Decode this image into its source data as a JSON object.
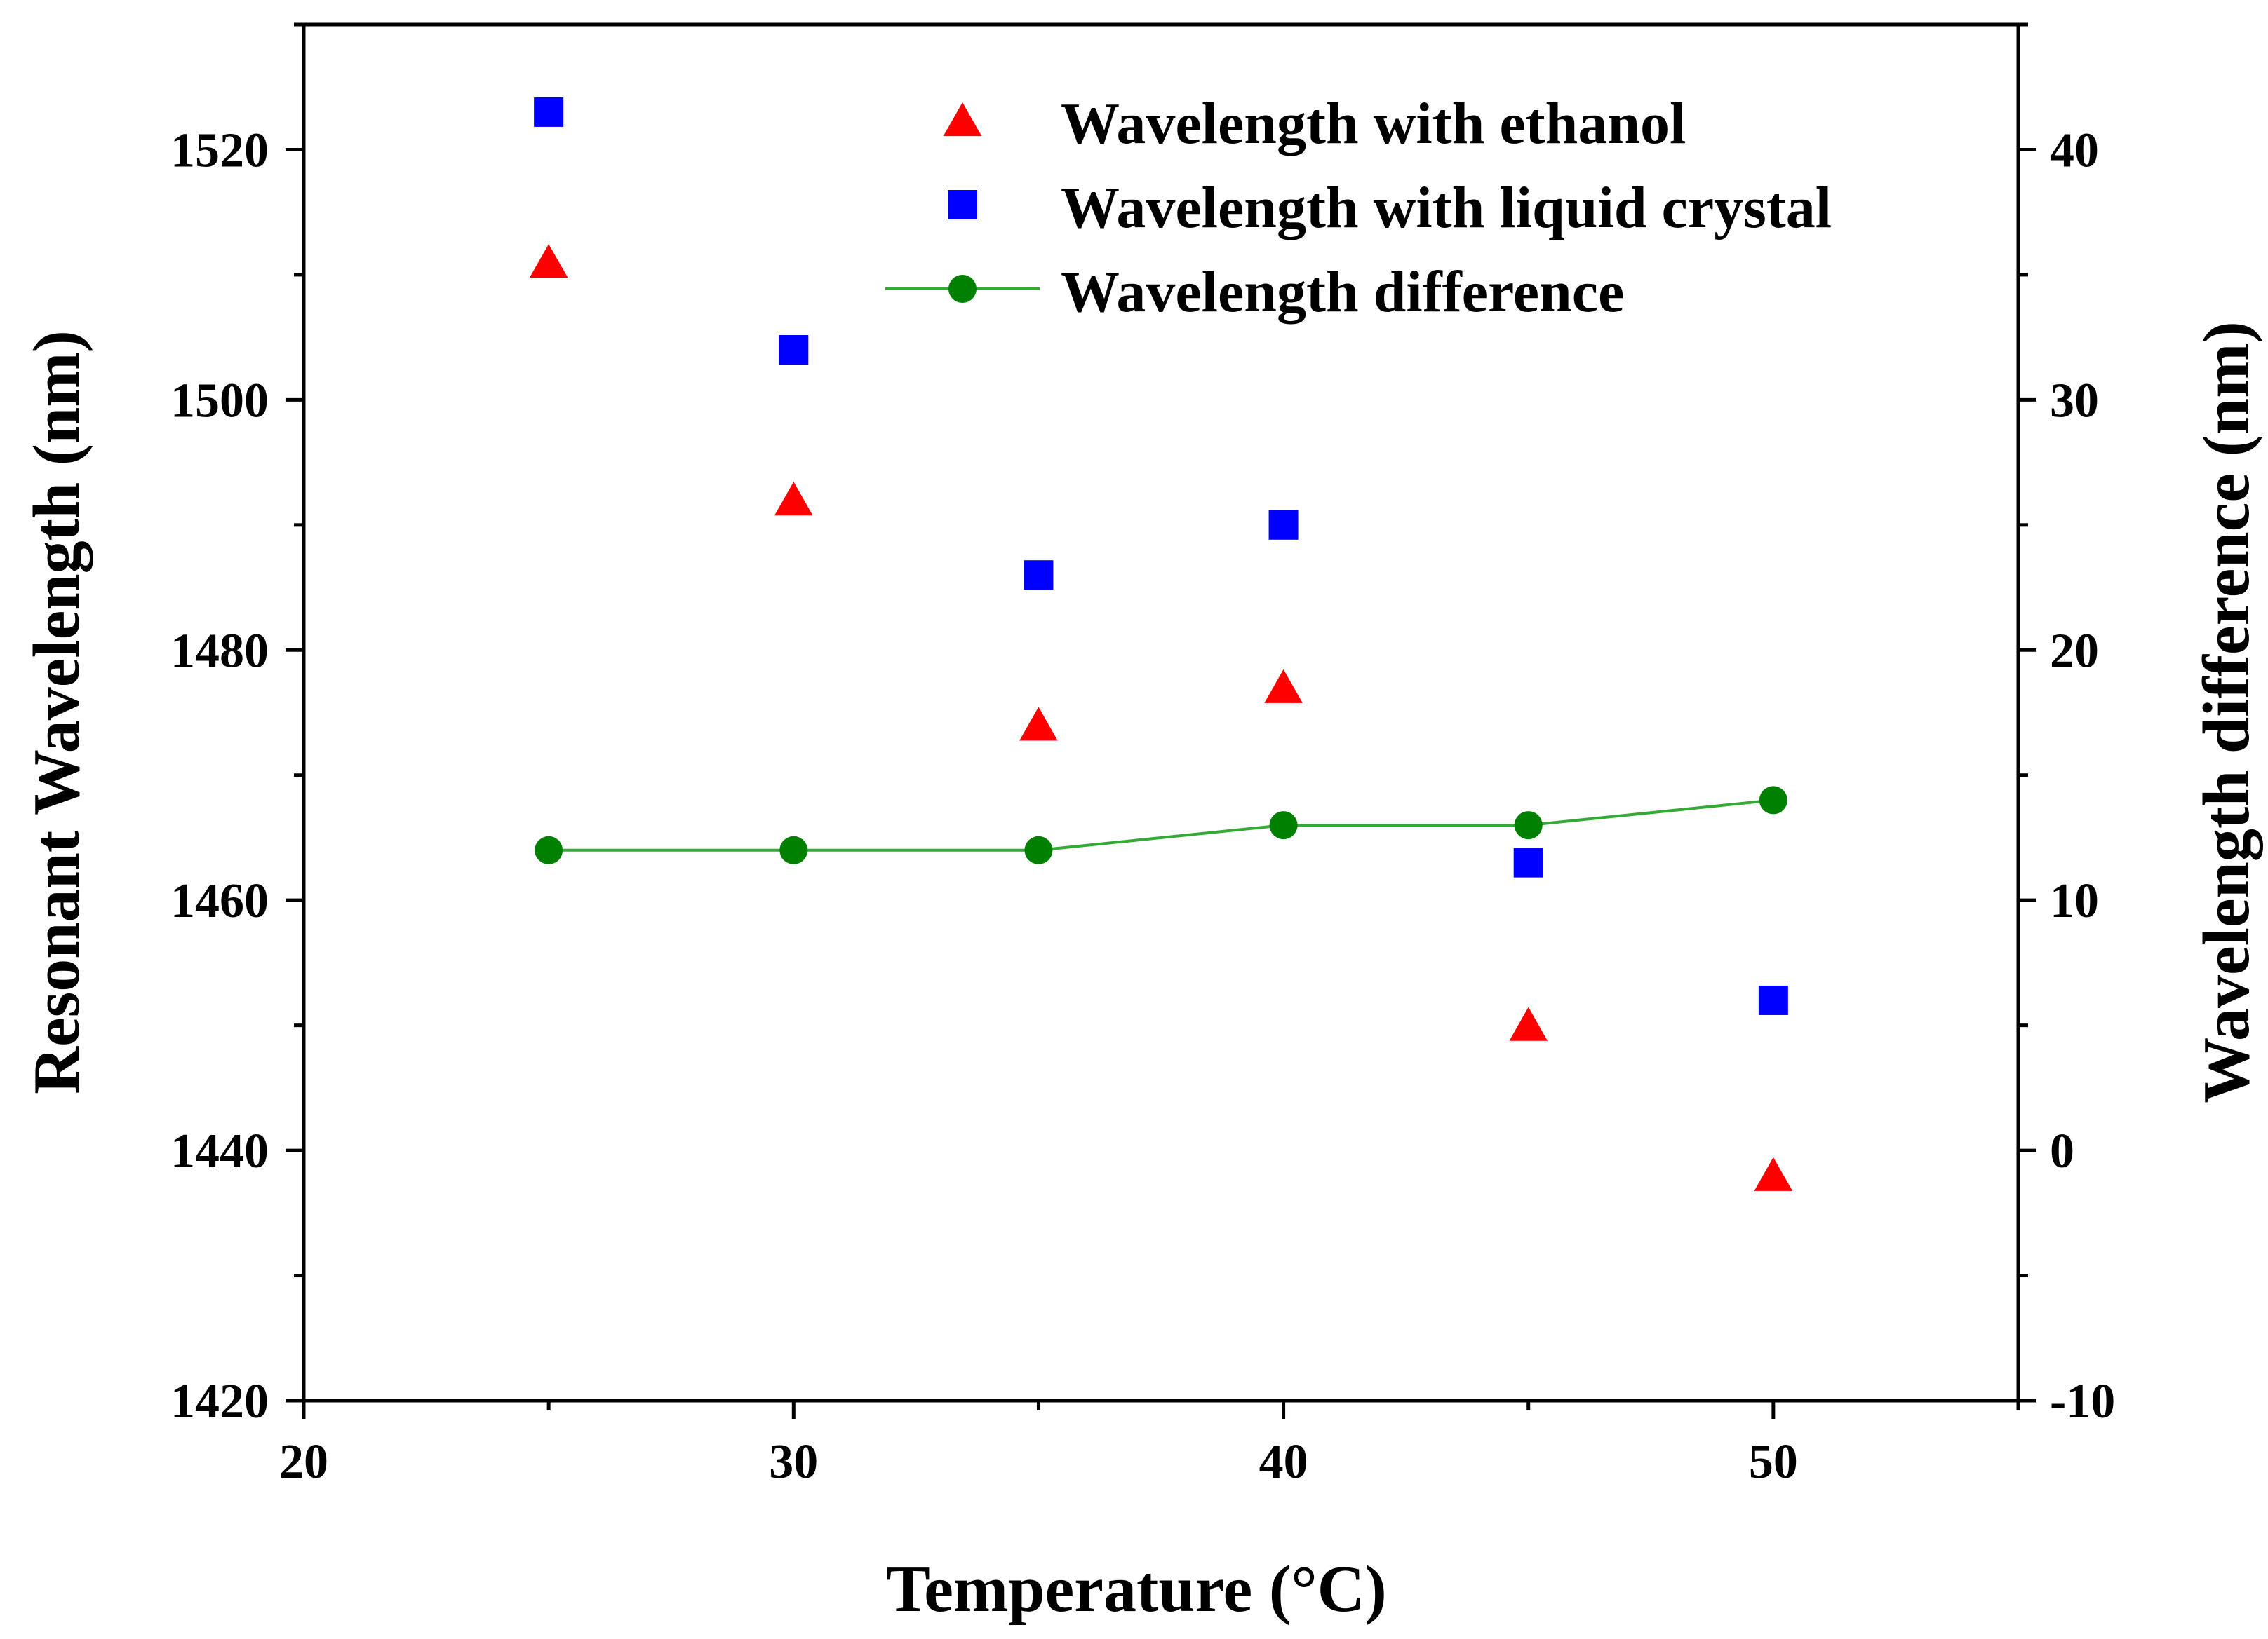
{
  "chart_data": {
    "type": "scatter",
    "title": "",
    "xlabel": "Temperature (°C)",
    "ylabel": "Resonant Wavelength (nm)",
    "y2label": "Wavelength difference (nm)",
    "xlim": [
      20,
      55
    ],
    "ylim": [
      1420,
      1530
    ],
    "y2lim": [
      -10,
      45
    ],
    "xticks": [
      20,
      30,
      40,
      50
    ],
    "yticks": [
      1420,
      1440,
      1460,
      1480,
      1500,
      1520
    ],
    "y2ticks": [
      -10,
      0,
      10,
      20,
      30,
      40
    ],
    "grid": false,
    "legend_position": "top-right",
    "x": [
      25,
      30,
      35,
      40,
      45,
      50
    ],
    "series": [
      {
        "name": "Wavelength with ethanol",
        "axis": "left",
        "marker": "triangle",
        "line": false,
        "color": "#ff0000",
        "values": [
          1511,
          1492,
          1474,
          1477,
          1450,
          1438
        ]
      },
      {
        "name": "Wavelength with liquid crystal",
        "axis": "left",
        "marker": "square",
        "line": false,
        "color": "#0000ff",
        "values": [
          1523,
          1504,
          1486,
          1490,
          1463,
          1452
        ]
      },
      {
        "name": "Wavelength difference",
        "axis": "right",
        "marker": "circle",
        "line": true,
        "color": "#008000",
        "line_color": "#33aa33",
        "values": [
          12,
          12,
          12,
          13,
          13,
          14
        ]
      }
    ]
  }
}
